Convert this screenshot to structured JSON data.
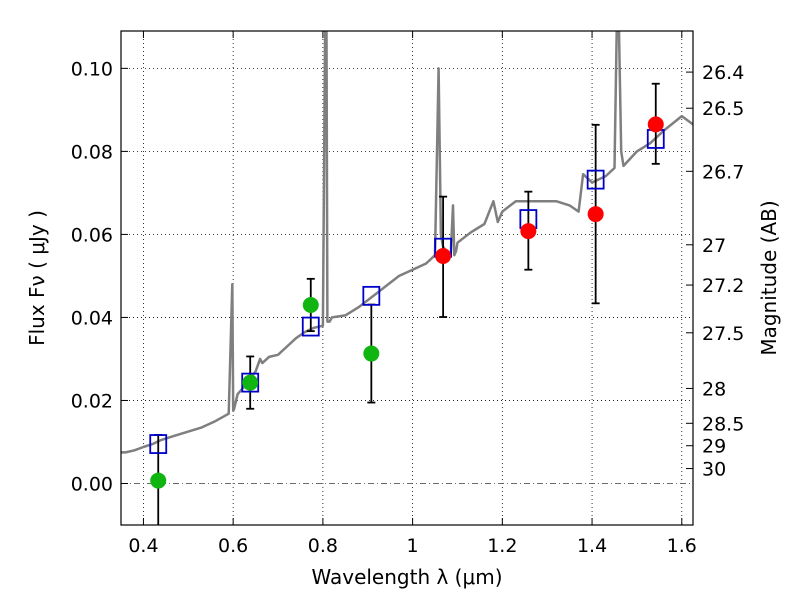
{
  "colors": {
    "model": "#7f7f7f",
    "box": "#0000cc",
    "green": "#11b511",
    "red": "#ff0000",
    "error": "#000000",
    "zero_line": "#555555"
  },
  "chart_data": {
    "type": "scatter",
    "xlabel": "Wavelength  λ (μm)",
    "ylabel": "Flux  Fν  ( μJy )",
    "y2label": "Magnitude (AB)",
    "xlim": [
      0.35,
      1.625
    ],
    "ylim": [
      -0.01,
      0.109
    ],
    "x_ticks": [
      0.4,
      0.6,
      0.8,
      1.0,
      1.2,
      1.4,
      1.6
    ],
    "x_tick_labels": [
      "0.4",
      "0.6",
      "0.8",
      "1",
      "1.2",
      "1.4",
      "1.6"
    ],
    "y_ticks": [
      0.0,
      0.02,
      0.04,
      0.06,
      0.08,
      0.1
    ],
    "y_tick_labels": [
      "0.00",
      "0.02",
      "0.04",
      "0.06",
      "0.08",
      "0.10"
    ],
    "y2_ticks": [
      {
        "flux": 0.0991,
        "label": "26.4"
      },
      {
        "flux": 0.0904,
        "label": "26.5"
      },
      {
        "flux": 0.0752,
        "label": "26.7"
      },
      {
        "flux": 0.0575,
        "label": "27"
      },
      {
        "flux": 0.0478,
        "label": "27.2"
      },
      {
        "flux": 0.0363,
        "label": "27.5"
      },
      {
        "flux": 0.0229,
        "label": "28"
      },
      {
        "flux": 0.0145,
        "label": "28.5"
      },
      {
        "flux": 0.0091,
        "label": "29"
      },
      {
        "flux": 0.0036,
        "label": "30"
      }
    ],
    "grid": true,
    "zero_line": true,
    "model_spectrum": {
      "x": [
        0.35,
        0.36,
        0.38,
        0.4,
        0.42,
        0.44,
        0.47,
        0.5,
        0.53,
        0.56,
        0.59,
        0.598,
        0.6,
        0.602,
        0.61,
        0.63,
        0.65,
        0.66,
        0.665,
        0.68,
        0.7,
        0.72,
        0.74,
        0.76,
        0.78,
        0.8,
        0.805,
        0.808,
        0.81,
        0.815,
        0.82,
        0.85,
        0.88,
        0.91,
        0.94,
        0.97,
        1.0,
        1.03,
        1.05,
        1.058,
        1.063,
        1.068,
        1.075,
        1.085,
        1.09,
        1.093,
        1.097,
        1.1,
        1.13,
        1.16,
        1.18,
        1.19,
        1.2,
        1.23,
        1.26,
        1.29,
        1.32,
        1.35,
        1.37,
        1.38,
        1.4,
        1.43,
        1.45,
        1.455,
        1.46,
        1.465,
        1.47,
        1.5,
        1.53,
        1.56,
        1.6,
        1.625
      ],
      "y": [
        0.0075,
        0.0075,
        0.008,
        0.0088,
        0.0095,
        0.0105,
        0.0115,
        0.0125,
        0.0135,
        0.015,
        0.0168,
        0.048,
        0.0175,
        0.018,
        0.0215,
        0.024,
        0.027,
        0.03,
        0.029,
        0.0305,
        0.031,
        0.033,
        0.035,
        0.0365,
        0.0375,
        0.038,
        0.109,
        0.109,
        0.039,
        0.039,
        0.04,
        0.0405,
        0.0425,
        0.045,
        0.0475,
        0.05,
        0.0515,
        0.053,
        0.055,
        0.1,
        0.06,
        0.057,
        0.056,
        0.055,
        0.067,
        0.055,
        0.056,
        0.058,
        0.0605,
        0.0625,
        0.068,
        0.063,
        0.0655,
        0.068,
        0.068,
        0.068,
        0.068,
        0.067,
        0.0655,
        0.0745,
        0.0725,
        0.074,
        0.076,
        0.109,
        0.109,
        0.08,
        0.0765,
        0.08,
        0.082,
        0.085,
        0.0885,
        0.0865
      ]
    },
    "series": [
      {
        "marker": "open-square",
        "points": [
          {
            "x": 0.433,
            "y": 0.0095
          },
          {
            "x": 0.638,
            "y": 0.0243
          },
          {
            "x": 0.773,
            "y": 0.0378
          },
          {
            "x": 0.908,
            "y": 0.0452
          },
          {
            "x": 1.068,
            "y": 0.0568
          },
          {
            "x": 1.258,
            "y": 0.0637
          },
          {
            "x": 1.408,
            "y": 0.0732
          },
          {
            "x": 1.542,
            "y": 0.083
          }
        ]
      },
      {
        "marker": "filled-circle-green",
        "points": [
          {
            "x": 0.433,
            "y": 0.0007,
            "err_lo": 0.011,
            "err_hi": 0.011
          },
          {
            "x": 0.638,
            "y": 0.0243,
            "err_lo": 0.0063,
            "err_hi": 0.0063
          },
          {
            "x": 0.773,
            "y": 0.043,
            "err_lo": 0.0063,
            "err_hi": 0.0063
          },
          {
            "x": 0.908,
            "y": 0.0313,
            "err_lo": 0.0118,
            "err_hi": 0.0118
          }
        ]
      },
      {
        "marker": "filled-circle-red",
        "points": [
          {
            "x": 1.068,
            "y": 0.0548,
            "err_lo": 0.0147,
            "err_hi": 0.0143
          },
          {
            "x": 1.258,
            "y": 0.0608,
            "err_lo": 0.0093,
            "err_hi": 0.0095
          },
          {
            "x": 1.408,
            "y": 0.0649,
            "err_lo": 0.0215,
            "err_hi": 0.0215
          },
          {
            "x": 1.542,
            "y": 0.0865,
            "err_lo": 0.0095,
            "err_hi": 0.0098
          }
        ]
      }
    ]
  }
}
